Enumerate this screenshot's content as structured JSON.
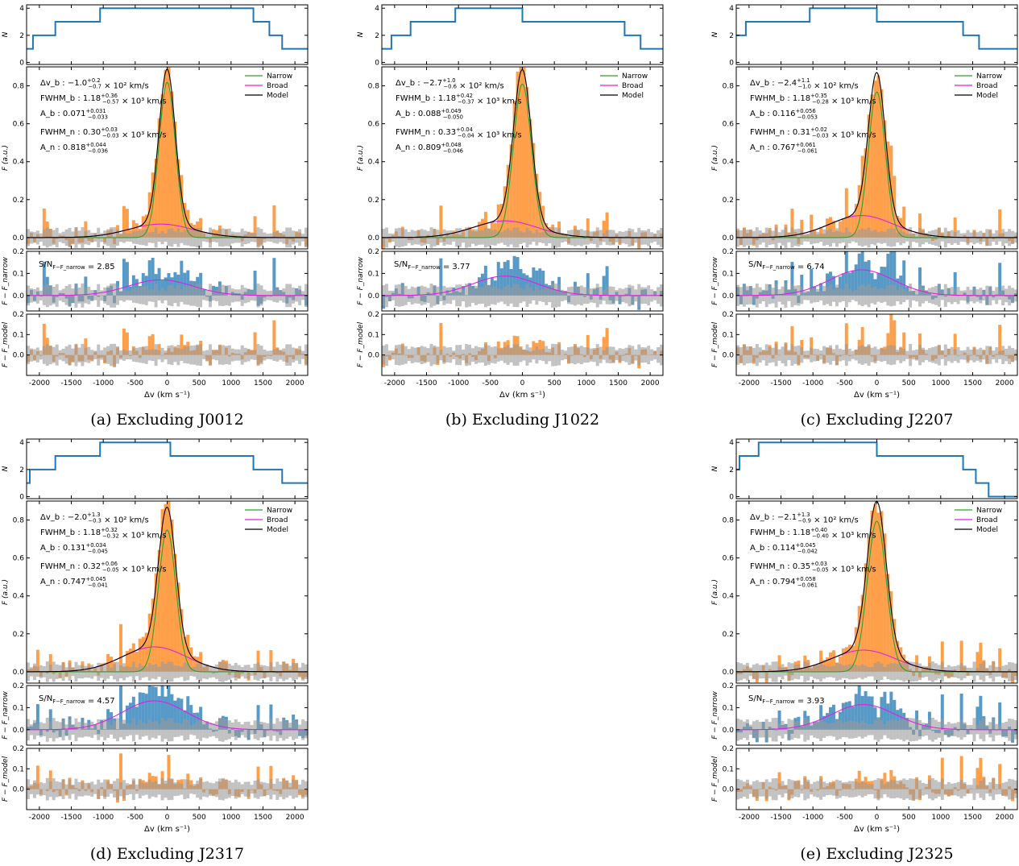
{
  "figure": {
    "x_axis_label": "Δv (km s⁻¹)",
    "x_ticks": [
      -2000,
      -1500,
      -1000,
      -500,
      0,
      500,
      1000,
      1500,
      2000
    ],
    "x_range": [
      -2200,
      2200
    ],
    "panel_labels": {
      "count": "N",
      "flux": "F (a.u.)",
      "resid_narrow": "F − F_narrow",
      "resid_model": "F − F_model"
    },
    "legend": [
      "Narrow",
      "Broad",
      "Model"
    ],
    "colors": {
      "narrow": "#2ca02c",
      "broad": "#e31ee3",
      "model": "#000000",
      "count": "#1f77b4",
      "flux_fill": "#ff7f0e",
      "resid_fill": "#1f77b4",
      "error_fill": "#9a9a9a"
    },
    "count_ticks": [
      0,
      2,
      4
    ],
    "flux_ticks": [
      0.0,
      0.2,
      0.4,
      0.6,
      0.8
    ],
    "resid_narrow_ticks": [
      0.0,
      0.1,
      0.2
    ],
    "resid_model_ticks": [
      0.0,
      0.1,
      0.2
    ]
  },
  "chart_data": [
    {
      "type": "line",
      "title": "(a) Excluding J0012",
      "x_label": "Δv (km s⁻¹)",
      "y_label": "F (a.u.)",
      "count_steps": {
        "edges": [
          -2200,
          -2100,
          -2050,
          -1750,
          -1050,
          1350,
          1600,
          1800,
          2200
        ],
        "values": [
          1,
          2,
          2,
          3,
          4,
          3,
          2,
          1
        ]
      },
      "fit": {
        "dv_b": -100,
        "fwhm_b": 1180,
        "a_b": 0.071,
        "fwhm_n": 300,
        "a_n": 0.818
      },
      "annotations": {
        "dv_b": "Δv_b : −1.0^{+0.2}_{−0.7} × 10² km/s",
        "fwhm_b": "FWHM_b : 1.18^{+0.36}_{−0.57} × 10³ km/s",
        "a_b": "A_b : 0.071^{+0.031}_{−0.033}",
        "fwhm_n": "FWHM_n : 0.30^{+0.03}_{−0.03} × 10³ km/s",
        "a_n": "A_n : 0.818^{+0.044}_{−0.036}",
        "sn": "S/N_{F−F_narrow} = 2.85"
      }
    },
    {
      "type": "line",
      "title": "(b) Excluding J1022",
      "x_label": "Δv (km s⁻¹)",
      "y_label": "F (a.u.)",
      "count_steps": {
        "edges": [
          -2200,
          -2050,
          -1750,
          -1050,
          0,
          1600,
          1850,
          2200
        ],
        "values": [
          1,
          2,
          3,
          4,
          3,
          2,
          1
        ]
      },
      "fit": {
        "dv_b": -270,
        "fwhm_b": 1180,
        "a_b": 0.088,
        "fwhm_n": 330,
        "a_n": 0.809
      },
      "annotations": {
        "dv_b": "Δv_b : −2.7^{+1.0}_{−0.6} × 10² km/s",
        "fwhm_b": "FWHM_b : 1.18^{+0.42}_{−0.37} × 10³ km/s",
        "a_b": "A_b : 0.088^{+0.049}_{−0.050}",
        "fwhm_n": "FWHM_n : 0.33^{+0.04}_{−0.04} × 10³ km/s",
        "a_n": "A_n : 0.809^{+0.048}_{−0.046}",
        "sn": "S/N_{F−F_narrow} = 3.77"
      }
    },
    {
      "type": "line",
      "title": "(c) Excluding J2207",
      "x_label": "Δv (km s⁻¹)",
      "y_label": "F (a.u.)",
      "count_steps": {
        "edges": [
          -2200,
          -2100,
          -2050,
          -1750,
          -1050,
          0,
          1350,
          1600,
          2200
        ],
        "values": [
          2,
          2,
          3,
          3,
          4,
          3,
          2,
          1
        ]
      },
      "fit": {
        "dv_b": -240,
        "fwhm_b": 1180,
        "a_b": 0.116,
        "fwhm_n": 310,
        "a_n": 0.767
      },
      "annotations": {
        "dv_b": "Δv_b : −2.4^{+1.1}_{−1.0} × 10² km/s",
        "fwhm_b": "FWHM_b : 1.18^{+0.35}_{−0.28} × 10³ km/s",
        "a_b": "A_b : 0.116^{+0.056}_{−0.053}",
        "fwhm_n": "FWHM_n : 0.31^{+0.02}_{−0.03} × 10³ km/s",
        "a_n": "A_n : 0.767^{+0.061}_{−0.061}",
        "sn": "S/N_{F−F_narrow} = 6.74"
      }
    },
    {
      "type": "line",
      "title": "(d) Excluding J2317",
      "x_label": "Δv (km s⁻¹)",
      "y_label": "F (a.u.)",
      "count_steps": {
        "edges": [
          -2200,
          -2150,
          -1750,
          -1050,
          50,
          1350,
          1800,
          2200
        ],
        "values": [
          1,
          2,
          3,
          4,
          3,
          2,
          1
        ]
      },
      "fit": {
        "dv_b": -200,
        "fwhm_b": 1180,
        "a_b": 0.131,
        "fwhm_n": 320,
        "a_n": 0.747
      },
      "annotations": {
        "dv_b": "Δv_b : −2.0^{+1.3}_{−0.3} × 10² km/s",
        "fwhm_b": "FWHM_b : 1.18^{+0.32}_{−0.32} × 10³ km/s",
        "a_b": "A_b : 0.131^{+0.034}_{−0.045}",
        "fwhm_n": "FWHM_n : 0.32^{+0.06}_{−0.05} × 10³ km/s",
        "a_n": "A_n : 0.747^{+0.045}_{−0.041}",
        "sn": "S/N_{F−F_narrow} = 4.57"
      }
    },
    {
      "type": "line",
      "title": "(e) Excluding J2325",
      "x_label": "Δv (km s⁻¹)",
      "y_label": "F (a.u.)",
      "count_steps": {
        "edges": [
          -2200,
          -2150,
          -2050,
          -1850,
          0,
          1350,
          1550,
          1750,
          2200
        ],
        "values": [
          2,
          3,
          3,
          4,
          3,
          2,
          1,
          0
        ]
      },
      "fit": {
        "dv_b": -210,
        "fwhm_b": 1180,
        "a_b": 0.114,
        "fwhm_n": 350,
        "a_n": 0.794
      },
      "annotations": {
        "dv_b": "Δv_b : −2.1^{+1.3}_{−0.9} × 10² km/s",
        "fwhm_b": "FWHM_b : 1.18^{+0.40}_{−0.40} × 10³ km/s",
        "a_b": "A_b : 0.114^{+0.045}_{−0.042}",
        "fwhm_n": "FWHM_n : 0.35^{+0.03}_{−0.05} × 10³ km/s",
        "a_n": "A_n : 0.794^{+0.058}_{−0.061}",
        "sn": "S/N_{F−F_narrow} = 3.93"
      }
    }
  ]
}
